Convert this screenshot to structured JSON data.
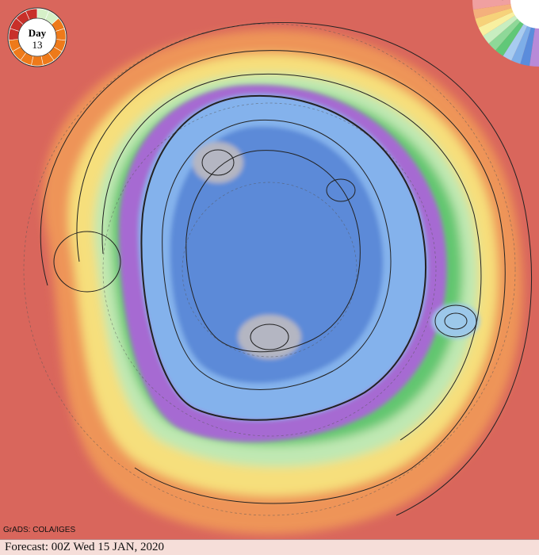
{
  "day_badge": {
    "label": "Day",
    "number": "13",
    "progress_fraction": 0.867
  },
  "credit": "GrADS: COLA/IGES",
  "forecast": "Forecast: 00Z Wed 15 JAN, 2020",
  "legend": {
    "ticks": [
      "-4",
      "-8",
      "-12",
      "-16",
      "-20",
      "-24",
      "-28",
      "-32",
      "-36",
      "-40",
      "-44"
    ],
    "colors": [
      "#f0a0a0",
      "#f4b07c",
      "#f6d27a",
      "#f8f0a0",
      "#c8eec0",
      "#8ed898",
      "#60c878",
      "#a8ccf0",
      "#7eaee8",
      "#5a8cdc",
      "#b88ad8"
    ]
  },
  "colors": {
    "warm": "#e06a5e",
    "orange": "#f09858",
    "yellow": "#f6e07a",
    "light_green": "#b8e8b0",
    "green": "#5cc46a",
    "purple": "#a86ad0",
    "blue": "#7eaee8",
    "deep_blue": "#5a86d8",
    "gray": "#b8b8c0"
  }
}
